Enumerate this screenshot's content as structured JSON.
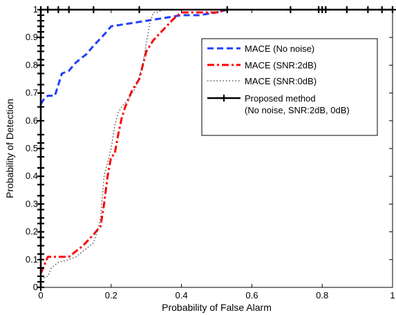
{
  "chart_data": {
    "type": "line",
    "title": "",
    "xlabel": "Probability of False Alarm",
    "ylabel": "Probability of Detection",
    "xlim": [
      0,
      1
    ],
    "ylim": [
      0,
      1
    ],
    "xticks": [
      "0",
      "0.2",
      "0.4",
      "0.6",
      "0.8",
      "1"
    ],
    "yticks": [
      "0",
      "0.1",
      "0.2",
      "0.3",
      "0.4",
      "0.5",
      "0.6",
      "0.7",
      "0.8",
      "0.9",
      "1"
    ],
    "grid": false,
    "legend_position": "top-right",
    "series": [
      {
        "name": "MACE (No noise)",
        "color": "#1f3fff",
        "style": "dashed",
        "x": [
          0,
          0.01,
          0.02,
          0.04,
          0.05,
          0.06,
          0.08,
          0.1,
          0.13,
          0.15,
          0.18,
          0.2,
          0.25,
          0.3,
          0.35,
          0.4,
          0.45,
          0.5,
          0.53
        ],
        "y": [
          0.66,
          0.68,
          0.69,
          0.69,
          0.73,
          0.77,
          0.78,
          0.81,
          0.84,
          0.87,
          0.91,
          0.94,
          0.95,
          0.96,
          0.97,
          0.98,
          0.98,
          0.99,
          1.0
        ]
      },
      {
        "name": "MACE (SNR:2dB)",
        "color": "#ff0000",
        "style": "dashdot",
        "x": [
          0,
          0.01,
          0.02,
          0.05,
          0.08,
          0.12,
          0.15,
          0.17,
          0.18,
          0.19,
          0.2,
          0.21,
          0.22,
          0.23,
          0.24,
          0.26,
          0.28,
          0.29,
          0.3,
          0.32,
          0.35,
          0.38,
          0.4,
          0.45,
          0.5,
          0.53
        ],
        "y": [
          0.05,
          0.08,
          0.11,
          0.11,
          0.11,
          0.15,
          0.19,
          0.22,
          0.3,
          0.4,
          0.47,
          0.48,
          0.55,
          0.61,
          0.65,
          0.71,
          0.75,
          0.8,
          0.85,
          0.89,
          0.93,
          0.97,
          0.99,
          0.99,
          0.99,
          1.0
        ]
      },
      {
        "name": "MACE (SNR:0dB)",
        "color": "#555555",
        "style": "dotted",
        "x": [
          0,
          0.02,
          0.03,
          0.05,
          0.08,
          0.1,
          0.13,
          0.15,
          0.16,
          0.17,
          0.18,
          0.19,
          0.2,
          0.21,
          0.22,
          0.23,
          0.25,
          0.27,
          0.29,
          0.3,
          0.31,
          0.32,
          0.33,
          0.35
        ],
        "y": [
          0.03,
          0.04,
          0.07,
          0.09,
          0.1,
          0.11,
          0.14,
          0.16,
          0.2,
          0.25,
          0.4,
          0.45,
          0.5,
          0.58,
          0.63,
          0.65,
          0.68,
          0.72,
          0.8,
          0.88,
          0.95,
          0.99,
          0.99,
          1.0
        ]
      },
      {
        "name": "Proposed method\n(No noise, SNR:2dB, 0dB)",
        "color": "#000000",
        "style": "solid-plus",
        "x": [
          0,
          0,
          0,
          0,
          0,
          0,
          0,
          0,
          0,
          0,
          0,
          0,
          0,
          0,
          0,
          0,
          0,
          0,
          0,
          0,
          0,
          0,
          0,
          0,
          0,
          0,
          0,
          0,
          0,
          0,
          0,
          0,
          0,
          0,
          0,
          0,
          0.02,
          0.05,
          0.08,
          0.15,
          0.28,
          0.53,
          0.71,
          0.79,
          0.8,
          0.81,
          0.87,
          0.93,
          0.97,
          1.0
        ],
        "y": [
          0.0,
          0.02,
          0.04,
          0.07,
          0.1,
          0.12,
          0.15,
          0.18,
          0.2,
          0.23,
          0.25,
          0.28,
          0.3,
          0.33,
          0.37,
          0.4,
          0.43,
          0.47,
          0.5,
          0.52,
          0.55,
          0.6,
          0.65,
          0.7,
          0.73,
          0.77,
          0.8,
          0.82,
          0.85,
          0.87,
          0.9,
          0.92,
          0.94,
          0.96,
          0.98,
          1.0,
          1.0,
          1.0,
          1.0,
          1.0,
          1.0,
          1.0,
          1.0,
          1.0,
          1.0,
          1.0,
          1.0,
          1.0,
          1.0,
          1.0
        ]
      }
    ]
  }
}
